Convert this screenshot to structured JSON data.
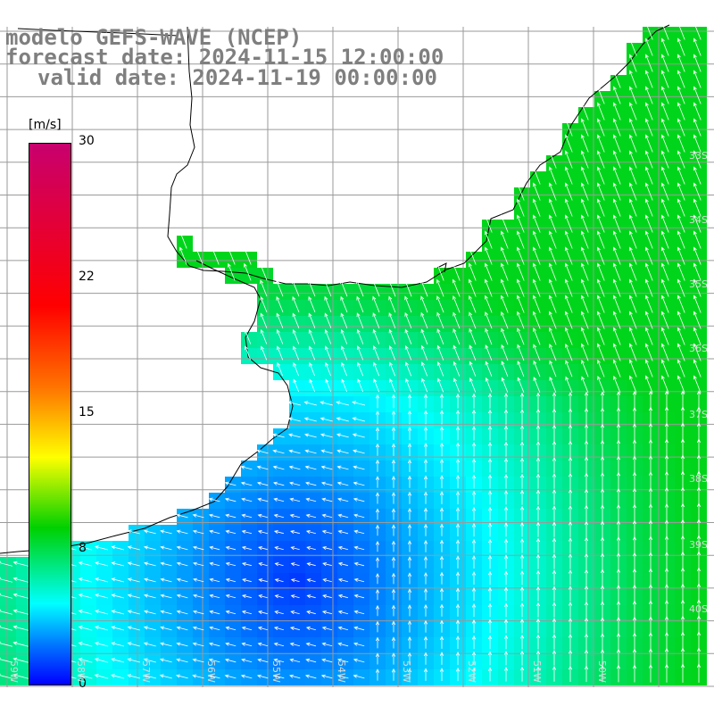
{
  "title": {
    "line1": "modelo GEFS-WAVE (NCEP)",
    "line2": "forecast date: 2024-11-15 12:00:00",
    "line3": "valid date: 2024-11-19 00:00:00"
  },
  "colorbar": {
    "unit": "[m/s]",
    "ticks": [
      {
        "label": "30",
        "value": 30
      },
      {
        "label": "22",
        "value": 22
      },
      {
        "label": "15",
        "value": 15
      },
      {
        "label": "8",
        "value": 8
      },
      {
        "label": "0",
        "value": 0
      }
    ],
    "colors": [
      "#0000ff",
      "#0070ff",
      "#00ffff",
      "#00d000",
      "#ffff00",
      "#ff7300",
      "#ff0000",
      "#c8006e"
    ]
  },
  "lon_labels": [
    "59W",
    "58W",
    "57W",
    "56W",
    "55W",
    "54W",
    "53W",
    "52W",
    "51W",
    "50W"
  ],
  "lat_labels": [
    "33S",
    "34S",
    "35S",
    "36S",
    "37S",
    "38S",
    "39S",
    "40S"
  ]
}
